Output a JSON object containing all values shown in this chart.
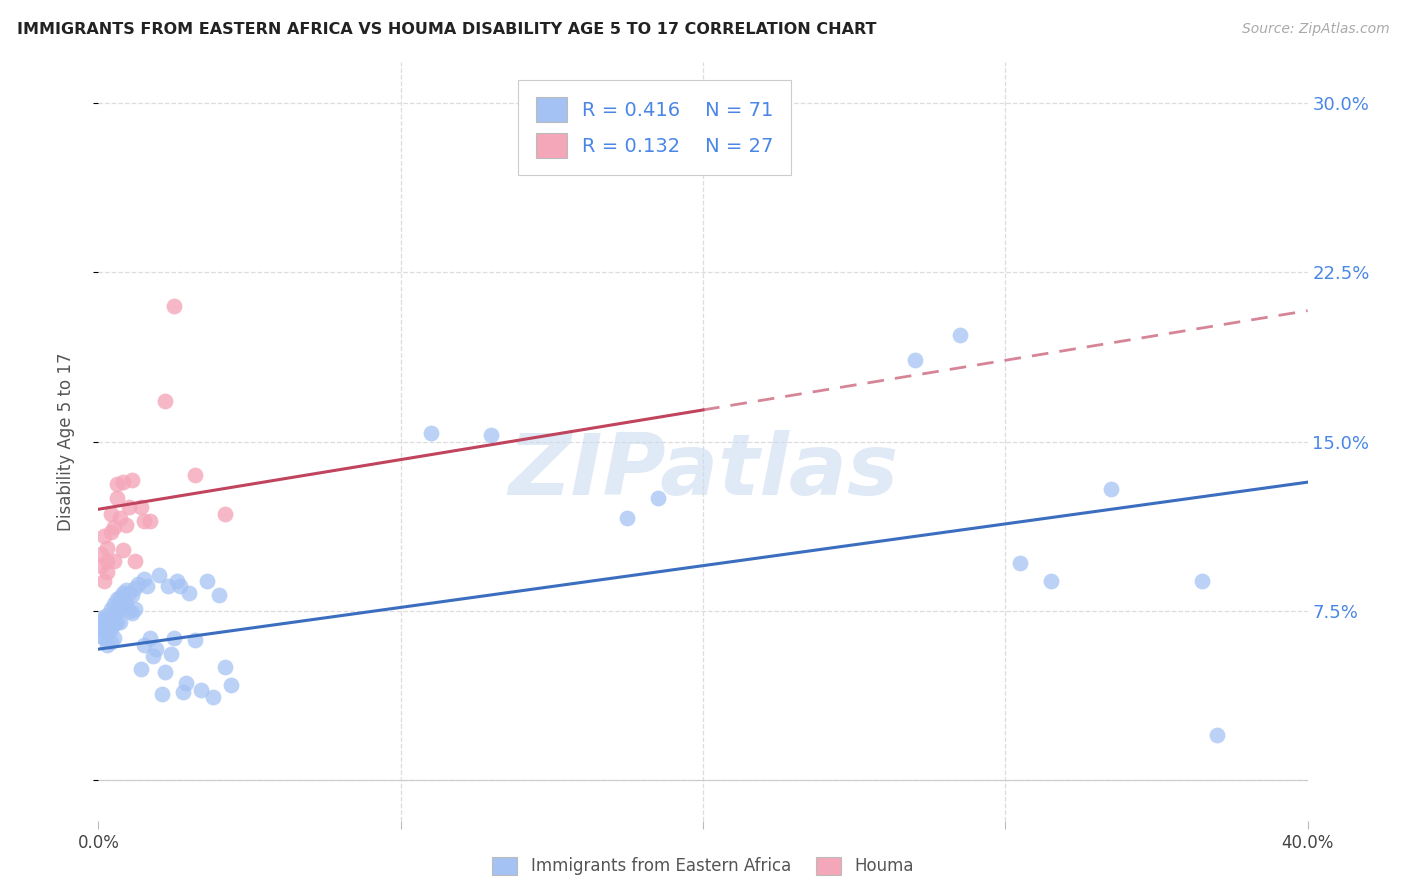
{
  "title": "IMMIGRANTS FROM EASTERN AFRICA VS HOUMA DISABILITY AGE 5 TO 17 CORRELATION CHART",
  "source": "Source: ZipAtlas.com",
  "ylabel": "Disability Age 5 to 17",
  "xmin": 0.0,
  "xmax": 0.4,
  "ymin": -0.018,
  "ymax": 0.318,
  "ytick_vals": [
    0.0,
    0.075,
    0.15,
    0.225,
    0.3
  ],
  "ytick_labels": [
    "",
    "7.5%",
    "15.0%",
    "22.5%",
    "30.0%"
  ],
  "xtick_vals": [
    0.0,
    0.1,
    0.2,
    0.3,
    0.4
  ],
  "R_blue": 0.416,
  "N_blue": 71,
  "R_pink": 0.132,
  "N_pink": 27,
  "blue_color": "#a4c2f4",
  "pink_color": "#f4a7b9",
  "blue_line_color": "#3c6ebf",
  "pink_line_color": "#c0445e",
  "text_color": "#4a86e8",
  "grid_color": "#dddddd",
  "watermark": "ZIPatlas",
  "blue_x": [
    0.001,
    0.001,
    0.001,
    0.002,
    0.002,
    0.002,
    0.003,
    0.003,
    0.003,
    0.003,
    0.004,
    0.004,
    0.004,
    0.004,
    0.005,
    0.005,
    0.005,
    0.005,
    0.006,
    0.006,
    0.006,
    0.007,
    0.007,
    0.007,
    0.008,
    0.008,
    0.009,
    0.009,
    0.01,
    0.01,
    0.011,
    0.011,
    0.012,
    0.012,
    0.013,
    0.014,
    0.015,
    0.015,
    0.016,
    0.017,
    0.018,
    0.019,
    0.02,
    0.021,
    0.022,
    0.023,
    0.024,
    0.025,
    0.026,
    0.027,
    0.028,
    0.029,
    0.03,
    0.032,
    0.034,
    0.036,
    0.038,
    0.04,
    0.042,
    0.044,
    0.11,
    0.13,
    0.175,
    0.185,
    0.27,
    0.285,
    0.305,
    0.315,
    0.335,
    0.365,
    0.37
  ],
  "blue_y": [
    0.068,
    0.072,
    0.064,
    0.071,
    0.067,
    0.063,
    0.073,
    0.069,
    0.065,
    0.06,
    0.076,
    0.072,
    0.067,
    0.061,
    0.078,
    0.074,
    0.069,
    0.063,
    0.08,
    0.075,
    0.07,
    0.081,
    0.076,
    0.07,
    0.083,
    0.077,
    0.084,
    0.078,
    0.083,
    0.075,
    0.082,
    0.074,
    0.085,
    0.076,
    0.087,
    0.049,
    0.089,
    0.06,
    0.086,
    0.063,
    0.055,
    0.058,
    0.091,
    0.038,
    0.048,
    0.086,
    0.056,
    0.063,
    0.088,
    0.086,
    0.039,
    0.043,
    0.083,
    0.062,
    0.04,
    0.088,
    0.037,
    0.082,
    0.05,
    0.042,
    0.154,
    0.153,
    0.116,
    0.125,
    0.186,
    0.197,
    0.096,
    0.088,
    0.129,
    0.088,
    0.02
  ],
  "pink_x": [
    0.001,
    0.001,
    0.002,
    0.002,
    0.003,
    0.003,
    0.003,
    0.004,
    0.004,
    0.005,
    0.005,
    0.006,
    0.006,
    0.007,
    0.008,
    0.008,
    0.009,
    0.01,
    0.011,
    0.012,
    0.014,
    0.015,
    0.017,
    0.022,
    0.025,
    0.032,
    0.042
  ],
  "pink_y": [
    0.095,
    0.1,
    0.088,
    0.108,
    0.103,
    0.097,
    0.092,
    0.118,
    0.11,
    0.112,
    0.097,
    0.131,
    0.125,
    0.116,
    0.132,
    0.102,
    0.113,
    0.121,
    0.133,
    0.097,
    0.121,
    0.115,
    0.115,
    0.168,
    0.21,
    0.135,
    0.118
  ],
  "pink_intercept": 0.12,
  "pink_slope": 0.22,
  "blue_intercept": 0.058,
  "blue_slope": 0.185
}
